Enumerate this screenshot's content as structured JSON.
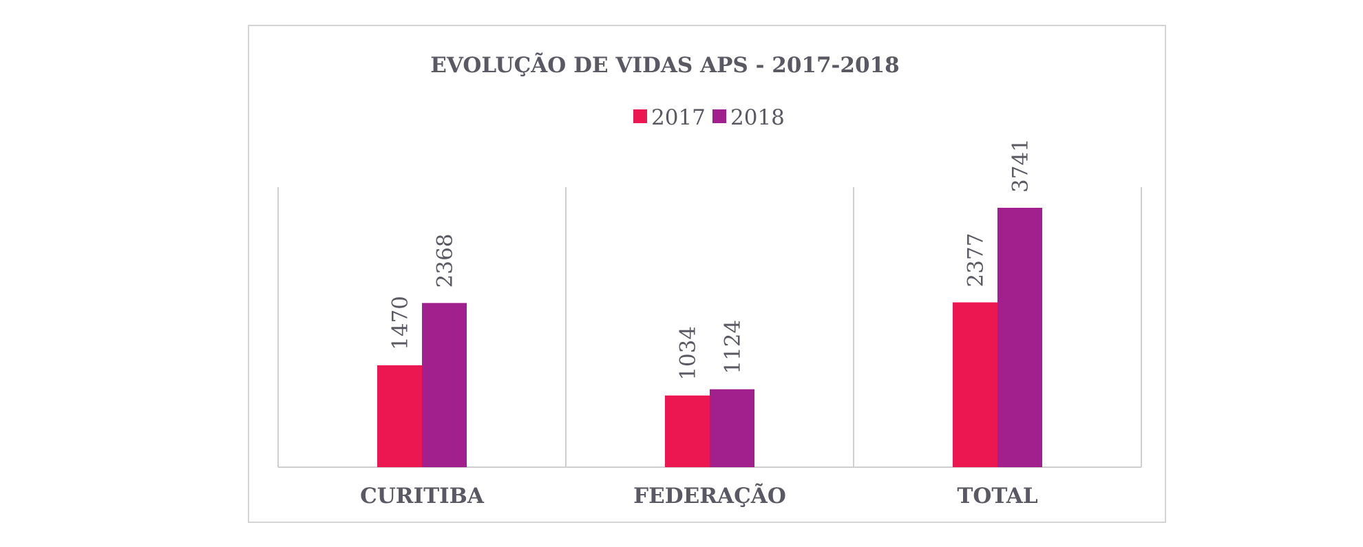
{
  "chart_data": {
    "type": "bar",
    "title": "EVOLUÇÃO DE VIDAS APS - 2017-2018",
    "categories": [
      "CURITIBA",
      "FEDERAÇÃO",
      "TOTAL"
    ],
    "series": [
      {
        "name": "2017",
        "values": [
          1470,
          1034,
          2377
        ],
        "color": "#ec1650"
      },
      {
        "name": "2018",
        "values": [
          2368,
          1124,
          3741
        ],
        "color": "#a21f8e"
      }
    ],
    "ylim": [
      0,
      4000
    ],
    "xlabel": "",
    "ylabel": "",
    "legend_position": "top",
    "grid": false,
    "data_labels": true,
    "data_label_orientation": "vertical"
  }
}
